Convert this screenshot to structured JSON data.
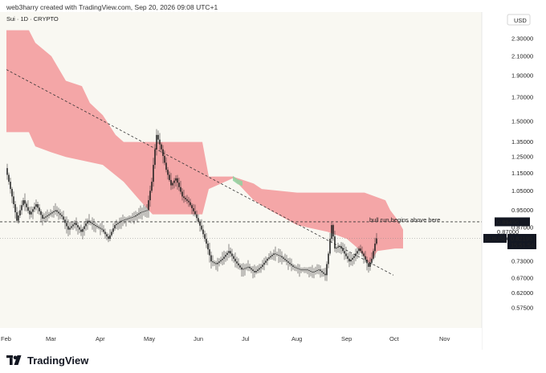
{
  "header": {
    "text": "web3harry created with TradingView.com, Sep 20, 2026 09:08 UTC+1"
  },
  "footer": {
    "brand": "TradingView"
  },
  "chart_data": {
    "type": "candlestick",
    "symbol_label": "Sui · 1D · CRYPTO",
    "currency": "USD",
    "y_scale": "log",
    "ylim": [
      0.54,
      2.55
    ],
    "y_ticks": [
      "2.30000",
      "2.10000",
      "1.90000",
      "1.70000",
      "1.50000",
      "1.35000",
      "1.25000",
      "1.15000",
      "1.05000",
      "0.95000",
      "0.87000",
      "0.73000",
      "0.67000",
      "0.62000",
      "0.57500"
    ],
    "x_ticks": [
      "Feb",
      "Mar",
      "Apr",
      "May",
      "Jun",
      "Jul",
      "Aug",
      "Sep",
      "Oct",
      "Nov"
    ],
    "price": [
      [
        "Feb 1",
        1.18
      ],
      [
        "Feb 5",
        1.02
      ],
      [
        "Feb 8",
        0.9
      ],
      [
        "Feb 12",
        1.0
      ],
      [
        "Feb 16",
        0.93
      ],
      [
        "Feb 20",
        0.98
      ],
      [
        "Feb 24",
        0.91
      ],
      [
        "Feb 28",
        0.93
      ],
      [
        "Mar 4",
        0.95
      ],
      [
        "Mar 8",
        0.92
      ],
      [
        "Mar 12",
        0.86
      ],
      [
        "Mar 16",
        0.89
      ],
      [
        "Mar 20",
        0.85
      ],
      [
        "Mar 24",
        0.9
      ],
      [
        "Mar 28",
        0.88
      ],
      [
        "Apr 2",
        0.86
      ],
      [
        "Apr 6",
        0.82
      ],
      [
        "Apr 10",
        0.88
      ],
      [
        "Apr 14",
        0.9
      ],
      [
        "Apr 18",
        0.91
      ],
      [
        "Apr 22",
        0.92
      ],
      [
        "Apr 26",
        0.94
      ],
      [
        "Apr 30",
        0.95
      ],
      [
        "May 3",
        1.1
      ],
      [
        "May 6",
        1.4
      ],
      [
        "May 9",
        1.3
      ],
      [
        "May 12",
        1.17
      ],
      [
        "May 15",
        1.08
      ],
      [
        "May 18",
        1.12
      ],
      [
        "May 22",
        1.02
      ],
      [
        "May 26",
        0.99
      ],
      [
        "May 30",
        0.93
      ],
      [
        "Jun 3",
        0.86
      ],
      [
        "Jun 6",
        0.8
      ],
      [
        "Jun 9",
        0.73
      ],
      [
        "Jun 12",
        0.72
      ],
      [
        "Jun 16",
        0.74
      ],
      [
        "Jun 20",
        0.77
      ],
      [
        "Jun 24",
        0.73
      ],
      [
        "Jun 28",
        0.7
      ],
      [
        "Jul 2",
        0.71
      ],
      [
        "Jul 6",
        0.69
      ],
      [
        "Jul 10",
        0.71
      ],
      [
        "Jul 14",
        0.74
      ],
      [
        "Jul 18",
        0.76
      ],
      [
        "Jul 22",
        0.75
      ],
      [
        "Jul 26",
        0.73
      ],
      [
        "Jul 30",
        0.71
      ],
      [
        "Aug 3",
        0.7
      ],
      [
        "Aug 7",
        0.7
      ],
      [
        "Aug 11",
        0.69
      ],
      [
        "Aug 15",
        0.7
      ],
      [
        "Aug 19",
        0.68
      ],
      [
        "Aug 21",
        0.76
      ],
      [
        "Aug 23",
        0.88
      ],
      [
        "Aug 25",
        0.78
      ],
      [
        "Aug 28",
        0.79
      ],
      [
        "Aug 31",
        0.76
      ],
      [
        "Sep 3",
        0.73
      ],
      [
        "Sep 6",
        0.75
      ],
      [
        "Sep 9",
        0.78
      ],
      [
        "Sep 12",
        0.75
      ],
      [
        "Sep 15",
        0.71
      ],
      [
        "Sep 17",
        0.74
      ],
      [
        "Sep 19",
        0.8
      ],
      [
        "Sep 20",
        0.82195
      ]
    ],
    "cloud_upper": [
      [
        "Feb 1",
        2.4
      ],
      [
        "Feb 15",
        2.4
      ],
      [
        "Feb 19",
        2.25
      ],
      [
        "Mar 1",
        2.1
      ],
      [
        "Mar 10",
        1.85
      ],
      [
        "Mar 20",
        1.8
      ],
      [
        "Mar 25",
        1.65
      ],
      [
        "Apr 2",
        1.55
      ],
      [
        "Apr 10",
        1.4
      ],
      [
        "Apr 15",
        1.35
      ],
      [
        "Jun 3",
        1.35
      ],
      [
        "Jun 7",
        1.13
      ],
      [
        "Jun 22",
        1.13
      ],
      [
        "Jul 5",
        1.09
      ],
      [
        "Jul 10",
        1.06
      ],
      [
        "Aug 1",
        1.04
      ],
      [
        "Sep 12",
        1.04
      ],
      [
        "Sep 25",
        1.0
      ],
      [
        "Sep 28",
        0.95
      ],
      [
        "Oct 3",
        0.9
      ],
      [
        "Oct 6",
        0.86
      ]
    ],
    "cloud_lower": [
      [
        "Feb 1",
        1.42
      ],
      [
        "Feb 15",
        1.42
      ],
      [
        "Feb 19",
        1.32
      ],
      [
        "Mar 1",
        1.28
      ],
      [
        "Mar 10",
        1.25
      ],
      [
        "Apr 2",
        1.2
      ],
      [
        "Apr 15",
        1.1
      ],
      [
        "Apr 25",
        1.0
      ],
      [
        "May 3",
        0.93
      ],
      [
        "Jun 3",
        0.93
      ],
      [
        "Jun 7",
        1.06
      ],
      [
        "Jun 22",
        1.12
      ],
      [
        "Jul 5",
        1.0
      ],
      [
        "Jul 15",
        0.95
      ],
      [
        "Aug 1",
        0.88
      ],
      [
        "Aug 20",
        0.85
      ],
      [
        "Sep 1",
        0.82
      ],
      [
        "Sep 8",
        0.78
      ],
      [
        "Sep 15",
        0.72
      ],
      [
        "Sep 20",
        0.77
      ],
      [
        "Oct 1",
        0.78
      ],
      [
        "Oct 6",
        0.78
      ]
    ],
    "green_cloud": [
      [
        "Jun 22",
        1.12
      ],
      [
        "Jun 25",
        1.1
      ],
      [
        "Jun 28",
        1.09
      ]
    ],
    "trendline": [
      [
        "Feb 1",
        1.96
      ],
      [
        "Sep 30",
        0.68
      ]
    ],
    "hline": {
      "value": 0.89496,
      "label": "0.89496"
    },
    "hline2": {
      "value": 0.82195
    },
    "annotation": "bull run begins above here",
    "last_price": {
      "symbol": "SUIUSD",
      "value": "0.82195",
      "countdown": "15:51:54",
      "hidden_label": "0.87000"
    }
  }
}
